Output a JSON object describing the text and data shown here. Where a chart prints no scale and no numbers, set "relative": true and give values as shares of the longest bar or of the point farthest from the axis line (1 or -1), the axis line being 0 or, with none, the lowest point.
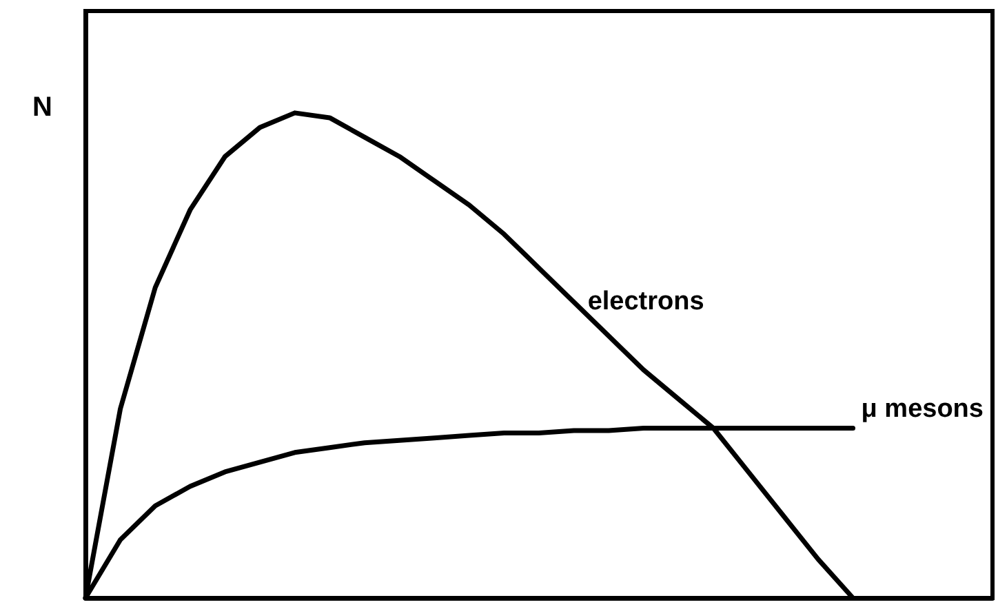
{
  "chart_data": {
    "type": "line",
    "relative": true,
    "ylabel": "N",
    "categories": [
      null,
      null,
      null,
      null,
      null,
      null,
      null,
      null,
      null,
      null,
      null,
      null,
      null,
      null,
      null,
      null,
      null,
      null,
      null,
      null,
      null,
      null,
      null,
      null,
      null,
      null,
      null
    ],
    "series": [
      {
        "name": "electrons",
        "color": "#000000",
        "values": [
          0,
          0.39,
          0.64,
          0.8,
          0.91,
          0.97,
          1,
          0.99,
          0.95,
          0.91,
          0.86,
          0.81,
          0.75,
          0.68,
          0.61,
          0.54,
          0.47,
          0.41,
          0.35,
          0.26,
          0.17,
          0.08,
          0,
          null,
          null,
          null,
          null
        ]
      },
      {
        "name": "μ mesons",
        "color": "#000000",
        "values": [
          0,
          0.12,
          0.19,
          0.23,
          0.26,
          0.28,
          0.3,
          0.31,
          0.32,
          0.325,
          0.33,
          0.335,
          0.34,
          0.34,
          0.345,
          0.345,
          0.35,
          0.35,
          0.35,
          0.35,
          0.35,
          0.35,
          0.35,
          null,
          null,
          null,
          null
        ]
      }
    ],
    "grid": false,
    "legend": false,
    "marker": "none",
    "line_style": "solid"
  }
}
